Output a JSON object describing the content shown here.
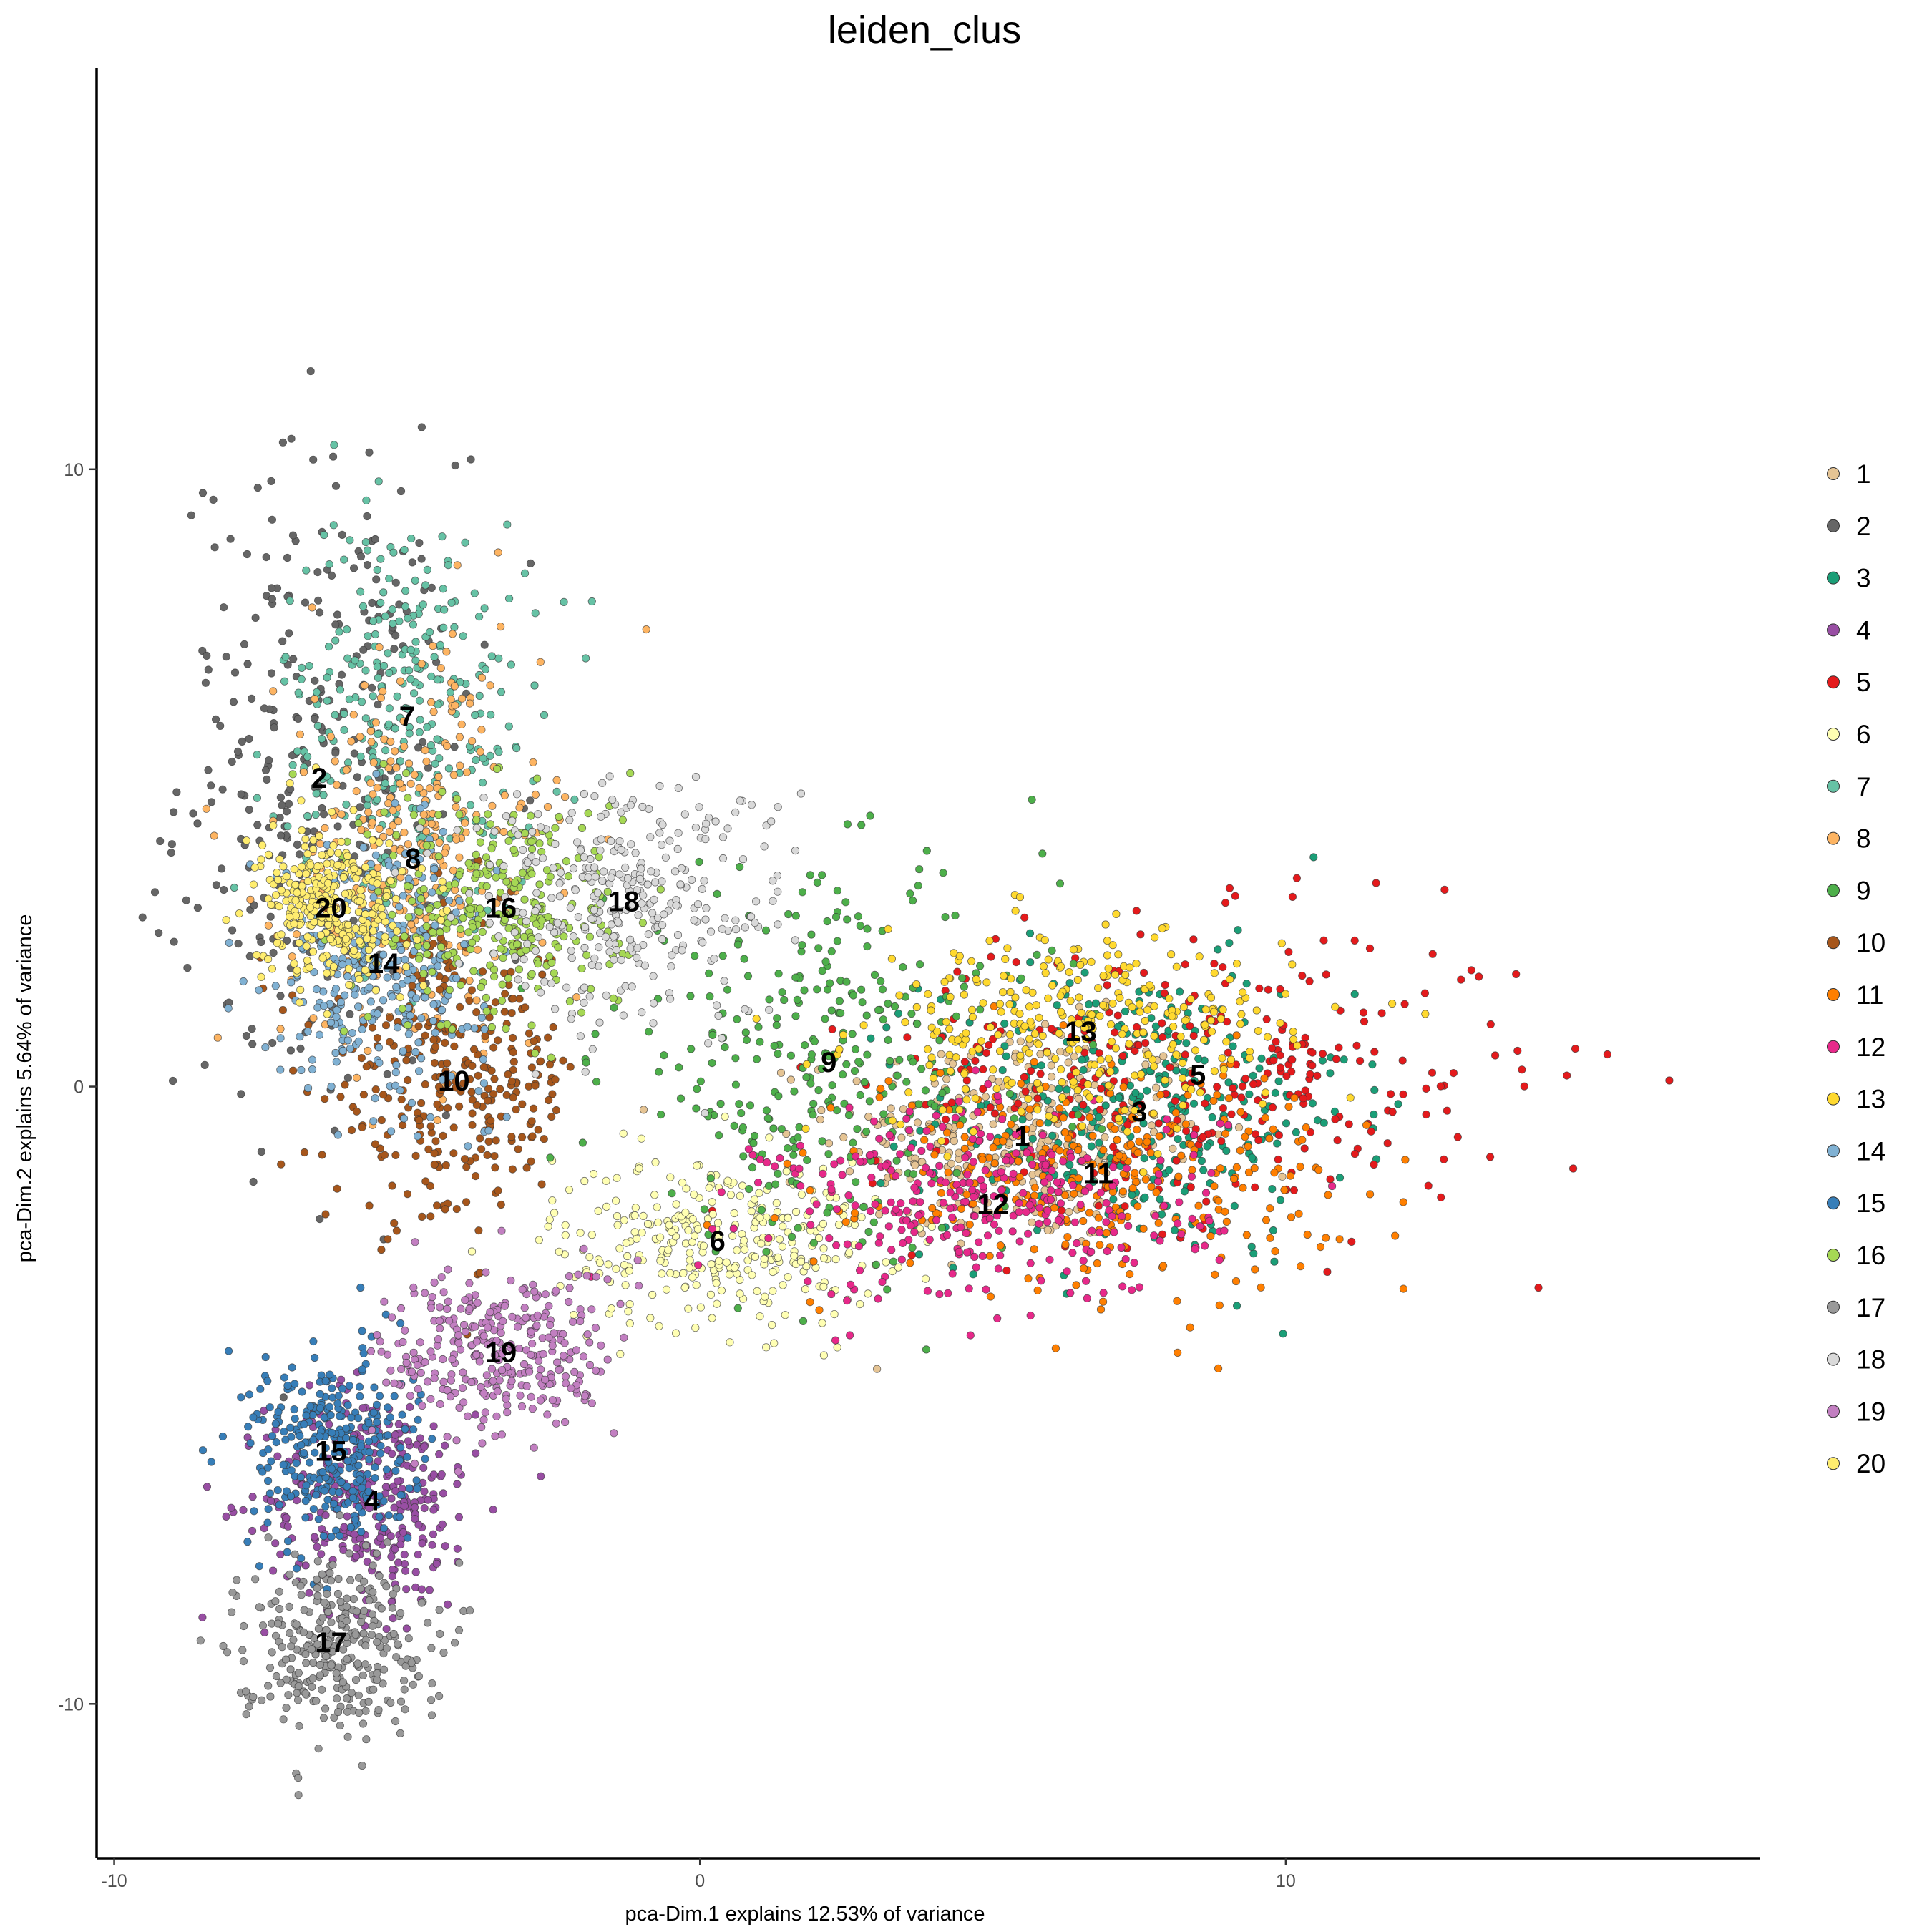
{
  "chart_data": {
    "type": "scatter",
    "title": "leiden_clus",
    "xlabel": "pca-Dim.1 explains 12.53% of variance",
    "ylabel": "pca-Dim.2 explains 5.64% of variance",
    "xlim": [
      -10.3,
      18.1
    ],
    "ylim": [
      -12.5,
      16.5
    ],
    "x_ticks": [
      -10,
      0,
      10
    ],
    "y_ticks": [
      -10,
      0,
      10
    ],
    "x_tick_labels": [
      "-10",
      "0",
      "10"
    ],
    "y_tick_labels": [
      "-10",
      "0",
      "10"
    ],
    "grid": false,
    "legend_position": "right",
    "clusters": [
      {
        "label": "1",
        "color": "#E5C494",
        "center": [
          5.5,
          -0.8
        ],
        "spread": [
          1.6,
          0.9
        ]
      },
      {
        "label": "2",
        "color": "#666666",
        "center": [
          -6.5,
          5.0
        ],
        "spread": [
          1.2,
          2.6
        ]
      },
      {
        "label": "3",
        "color": "#1B9E77",
        "center": [
          7.5,
          -0.4
        ],
        "spread": [
          1.8,
          1.2
        ]
      },
      {
        "label": "4",
        "color": "#984EA3",
        "center": [
          -5.6,
          -6.7
        ],
        "spread": [
          0.9,
          0.9
        ]
      },
      {
        "label": "5",
        "color": "#E41A1C",
        "center": [
          8.5,
          0.2
        ],
        "spread": [
          2.8,
          1.2
        ]
      },
      {
        "label": "6",
        "color": "#FFFFB3",
        "center": [
          0.3,
          -2.5
        ],
        "spread": [
          1.4,
          0.7
        ]
      },
      {
        "label": "7",
        "color": "#66C2A5",
        "center": [
          -5.0,
          6.0
        ],
        "spread": [
          1.1,
          1.6
        ]
      },
      {
        "label": "8",
        "color": "#FDB462",
        "center": [
          -4.9,
          3.7
        ],
        "spread": [
          1.1,
          1.7
        ]
      },
      {
        "label": "9",
        "color": "#4DAF4A",
        "center": [
          2.2,
          0.4
        ],
        "spread": [
          1.9,
          1.5
        ]
      },
      {
        "label": "10",
        "color": "#A6561B",
        "center": [
          -4.2,
          0.1
        ],
        "spread": [
          1.1,
          1.2
        ]
      },
      {
        "label": "11",
        "color": "#FF7F00",
        "center": [
          6.8,
          -1.4
        ],
        "spread": [
          2.0,
          0.9
        ]
      },
      {
        "label": "12",
        "color": "#E7298A",
        "center": [
          5.0,
          -1.9
        ],
        "spread": [
          1.9,
          0.8
        ]
      },
      {
        "label": "13",
        "color": "#FFD92F",
        "center": [
          6.5,
          0.9
        ],
        "spread": [
          1.8,
          0.8
        ]
      },
      {
        "label": "14",
        "color": "#80B1D3",
        "center": [
          -5.4,
          2.0
        ],
        "spread": [
          0.9,
          1.0
        ]
      },
      {
        "label": "15",
        "color": "#377EB8",
        "center": [
          -6.3,
          -5.9
        ],
        "spread": [
          0.7,
          0.8
        ]
      },
      {
        "label": "16",
        "color": "#A6D854",
        "center": [
          -3.4,
          2.9
        ],
        "spread": [
          1.1,
          1.0
        ]
      },
      {
        "label": "17",
        "color": "#999999",
        "center": [
          -6.3,
          -9.0
        ],
        "spread": [
          0.8,
          0.7
        ]
      },
      {
        "label": "18",
        "color": "#D9D9D9",
        "center": [
          -1.3,
          3.0
        ],
        "spread": [
          1.4,
          1.0
        ]
      },
      {
        "label": "19",
        "color": "#C27FC1",
        "center": [
          -3.4,
          -4.3
        ],
        "spread": [
          1.0,
          0.7
        ]
      },
      {
        "label": "20",
        "color": "#FFED6F",
        "center": [
          -6.3,
          2.9
        ],
        "spread": [
          0.6,
          0.6
        ]
      }
    ]
  }
}
